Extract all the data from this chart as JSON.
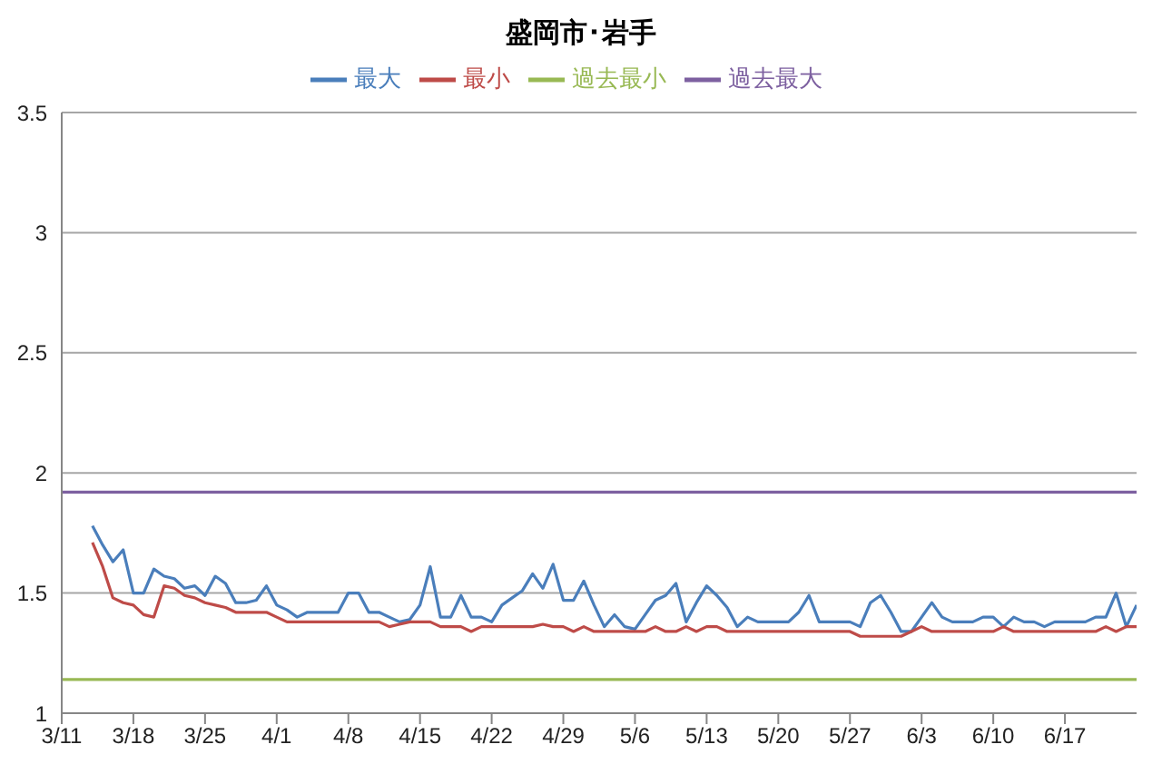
{
  "chart_data": {
    "type": "line",
    "title": "盛岡市･岩手",
    "categories": [
      "3/11",
      null,
      null,
      null,
      null,
      null,
      null,
      "3/18",
      null,
      null,
      null,
      null,
      null,
      null,
      "3/25",
      null,
      null,
      null,
      null,
      null,
      null,
      "4/1",
      null,
      null,
      null,
      null,
      null,
      null,
      "4/8",
      null,
      null,
      null,
      null,
      null,
      null,
      "4/15",
      null,
      null,
      null,
      null,
      null,
      null,
      "4/22",
      null,
      null,
      null,
      null,
      null,
      null,
      "4/29",
      null,
      null,
      null,
      null,
      null,
      null,
      "5/6",
      null,
      null,
      null,
      null,
      null,
      null,
      "5/13",
      null,
      null,
      null,
      null,
      null,
      null,
      "5/20",
      null,
      null,
      null,
      null,
      null,
      null,
      "5/27",
      null,
      null,
      null,
      null,
      null,
      null,
      "6/3",
      null,
      null,
      null,
      null,
      null,
      null,
      "6/10",
      null,
      null,
      null,
      null,
      null,
      null,
      "6/17",
      null,
      null,
      null,
      null,
      null,
      null,
      null
    ],
    "series": [
      {
        "name": "最大",
        "color": "#4a7ebb",
        "values": [
          null,
          null,
          null,
          1.78,
          1.7,
          1.63,
          1.68,
          1.5,
          1.5,
          1.6,
          1.57,
          1.56,
          1.52,
          1.53,
          1.49,
          1.57,
          1.54,
          1.46,
          1.46,
          1.47,
          1.53,
          1.45,
          1.43,
          1.4,
          1.42,
          1.42,
          1.42,
          1.42,
          1.5,
          1.5,
          1.42,
          1.42,
          1.4,
          1.38,
          1.39,
          1.45,
          1.61,
          1.4,
          1.4,
          1.49,
          1.4,
          1.4,
          1.38,
          1.45,
          1.48,
          1.51,
          1.58,
          1.52,
          1.62,
          1.47,
          1.47,
          1.55,
          1.45,
          1.36,
          1.41,
          1.36,
          1.35,
          1.41,
          1.47,
          1.49,
          1.54,
          1.38,
          1.46,
          1.53,
          1.49,
          1.44,
          1.36,
          1.4,
          1.38,
          1.38,
          1.38,
          1.38,
          1.42,
          1.49,
          1.38,
          1.38,
          1.38,
          1.38,
          1.36,
          1.46,
          1.49,
          1.42,
          1.34,
          1.34,
          1.4,
          1.46,
          1.4,
          1.38,
          1.38,
          1.38,
          1.4,
          1.4,
          1.36,
          1.4,
          1.38,
          1.38,
          1.36,
          1.38,
          1.38,
          1.38,
          1.38,
          1.4,
          1.4,
          1.5,
          1.36,
          1.45
        ]
      },
      {
        "name": "最小",
        "color": "#be4b48",
        "values": [
          null,
          null,
          null,
          1.71,
          1.61,
          1.48,
          1.46,
          1.45,
          1.41,
          1.4,
          1.53,
          1.52,
          1.49,
          1.48,
          1.46,
          1.45,
          1.44,
          1.42,
          1.42,
          1.42,
          1.42,
          1.4,
          1.38,
          1.38,
          1.38,
          1.38,
          1.38,
          1.38,
          1.38,
          1.38,
          1.38,
          1.38,
          1.36,
          1.37,
          1.38,
          1.38,
          1.38,
          1.36,
          1.36,
          1.36,
          1.34,
          1.36,
          1.36,
          1.36,
          1.36,
          1.36,
          1.36,
          1.37,
          1.36,
          1.36,
          1.34,
          1.36,
          1.34,
          1.34,
          1.34,
          1.34,
          1.34,
          1.34,
          1.36,
          1.34,
          1.34,
          1.36,
          1.34,
          1.36,
          1.36,
          1.34,
          1.34,
          1.34,
          1.34,
          1.34,
          1.34,
          1.34,
          1.34,
          1.34,
          1.34,
          1.34,
          1.34,
          1.34,
          1.32,
          1.32,
          1.32,
          1.32,
          1.32,
          1.34,
          1.36,
          1.34,
          1.34,
          1.34,
          1.34,
          1.34,
          1.34,
          1.34,
          1.36,
          1.34,
          1.34,
          1.34,
          1.34,
          1.34,
          1.34,
          1.34,
          1.34,
          1.34,
          1.36,
          1.34,
          1.36,
          1.36
        ]
      },
      {
        "name": "過去最小",
        "color": "#98b954",
        "values": [
          1.14,
          1.14,
          1.14,
          1.14,
          1.14,
          1.14,
          1.14,
          1.14,
          1.14,
          1.14,
          1.14,
          1.14,
          1.14,
          1.14,
          1.14,
          1.14,
          1.14,
          1.14,
          1.14,
          1.14,
          1.14,
          1.14,
          1.14,
          1.14,
          1.14,
          1.14,
          1.14,
          1.14,
          1.14,
          1.14,
          1.14,
          1.14,
          1.14,
          1.14,
          1.14,
          1.14,
          1.14,
          1.14,
          1.14,
          1.14,
          1.14,
          1.14,
          1.14,
          1.14,
          1.14,
          1.14,
          1.14,
          1.14,
          1.14,
          1.14,
          1.14,
          1.14,
          1.14,
          1.14,
          1.14,
          1.14,
          1.14,
          1.14,
          1.14,
          1.14,
          1.14,
          1.14,
          1.14,
          1.14,
          1.14,
          1.14,
          1.14,
          1.14,
          1.14,
          1.14,
          1.14,
          1.14,
          1.14,
          1.14,
          1.14,
          1.14,
          1.14,
          1.14,
          1.14,
          1.14,
          1.14,
          1.14,
          1.14,
          1.14,
          1.14,
          1.14,
          1.14,
          1.14,
          1.14,
          1.14,
          1.14,
          1.14,
          1.14,
          1.14,
          1.14,
          1.14,
          1.14,
          1.14,
          1.14,
          1.14,
          1.14,
          1.14,
          1.14,
          1.14,
          1.14,
          1.14
        ]
      },
      {
        "name": "過去最大",
        "color": "#7d60a0",
        "values": [
          1.92,
          1.92,
          1.92,
          1.92,
          1.92,
          1.92,
          1.92,
          1.92,
          1.92,
          1.92,
          1.92,
          1.92,
          1.92,
          1.92,
          1.92,
          1.92,
          1.92,
          1.92,
          1.92,
          1.92,
          1.92,
          1.92,
          1.92,
          1.92,
          1.92,
          1.92,
          1.92,
          1.92,
          1.92,
          1.92,
          1.92,
          1.92,
          1.92,
          1.92,
          1.92,
          1.92,
          1.92,
          1.92,
          1.92,
          1.92,
          1.92,
          1.92,
          1.92,
          1.92,
          1.92,
          1.92,
          1.92,
          1.92,
          1.92,
          1.92,
          1.92,
          1.92,
          1.92,
          1.92,
          1.92,
          1.92,
          1.92,
          1.92,
          1.92,
          1.92,
          1.92,
          1.92,
          1.92,
          1.92,
          1.92,
          1.92,
          1.92,
          1.92,
          1.92,
          1.92,
          1.92,
          1.92,
          1.92,
          1.92,
          1.92,
          1.92,
          1.92,
          1.92,
          1.92,
          1.92,
          1.92,
          1.92,
          1.92,
          1.92,
          1.92,
          1.92,
          1.92,
          1.92,
          1.92,
          1.92,
          1.92,
          1.92,
          1.92,
          1.92,
          1.92,
          1.92,
          1.92,
          1.92,
          1.92,
          1.92,
          1.92,
          1.92,
          1.92,
          1.92,
          1.92,
          1.92
        ]
      }
    ],
    "ylim": [
      1,
      3.5
    ],
    "yticks": [
      1,
      1.5,
      2,
      2.5,
      3,
      3.5
    ],
    "grid": "y",
    "legend": "top",
    "marker": "none",
    "line_style": "solid"
  }
}
